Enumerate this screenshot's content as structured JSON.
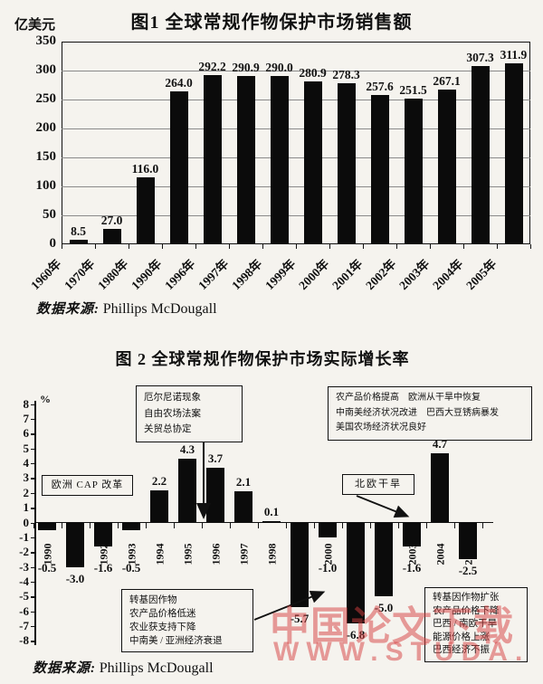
{
  "page": {
    "paper_color": "#f5f3ee",
    "ink_color": "#111111",
    "watermark_line1": "中国论文下载",
    "watermark_line2": "WWW.STUDA.",
    "watermark_color": "#d63e3e"
  },
  "chart_data": [
    {
      "id": "fig1",
      "type": "bar",
      "title": "图1  全球常规作物保护市场销售额",
      "ylabel": "亿美元",
      "categories": [
        "1960年",
        "1970年",
        "1980年",
        "1990年",
        "1996年",
        "1997年",
        "1998年",
        "1999年",
        "2000年",
        "2001年",
        "2002年",
        "2003年",
        "2004年",
        "2005年"
      ],
      "values": [
        8.5,
        27.0,
        116.0,
        264.0,
        292.2,
        290.9,
        290.0,
        280.9,
        278.3,
        257.6,
        251.5,
        267.1,
        307.3,
        311.9
      ],
      "ylim": [
        0,
        350
      ],
      "ytick_step": 50,
      "grid": true,
      "bar_color": "#0b0b0b",
      "legend": "none",
      "source_label": "数据来源:",
      "source_value": "Phillips McDougall"
    },
    {
      "id": "fig2",
      "type": "bar",
      "title": "图 2   全球常规作物保护市场实际增长率",
      "ylabel": "%",
      "categories": [
        "1990",
        "1991",
        "1992",
        "1993",
        "1994",
        "1995",
        "1996",
        "1997",
        "1998",
        "1999",
        "2000",
        "2001",
        "2002",
        "2003",
        "2004",
        "2005"
      ],
      "values": [
        -0.5,
        -3.0,
        -1.6,
        -0.5,
        2.2,
        4.3,
        3.7,
        2.1,
        0.1,
        -5.7,
        -1.0,
        -6.8,
        -5.0,
        -1.6,
        4.7,
        -2.5
      ],
      "ylim": [
        -8,
        8
      ],
      "ytick_step": 1,
      "grid": false,
      "bar_color": "#0b0b0b",
      "legend": "none",
      "source_label": "数据来源:",
      "source_value": "Phillips McDougall",
      "annotations": [
        {
          "id": "cap",
          "lines": [
            "欧洲 CAP 改革"
          ]
        },
        {
          "id": "elnino",
          "lines": [
            "厄尔尼诺现象",
            "自由农场法案",
            "关贸总协定"
          ]
        },
        {
          "id": "recovery",
          "lines": [
            "农产品价格提高　欧洲从干旱中恢复",
            "中南美经济状况改进　巴西大豆锈病暴发",
            "美国农场经济状况良好"
          ]
        },
        {
          "id": "drought",
          "lines": [
            "北欧干旱"
          ]
        },
        {
          "id": "downturn",
          "lines": [
            "转基因作物",
            "农产品价格低迷",
            "农业获支持下降",
            "中南美 / 亚洲经济衰退"
          ]
        },
        {
          "id": "decline",
          "lines": [
            "转基因作物扩张",
            "农产品价格下降",
            "巴西 / 南欧干旱",
            "能源价格上涨",
            "巴西经济不振"
          ]
        }
      ]
    }
  ]
}
